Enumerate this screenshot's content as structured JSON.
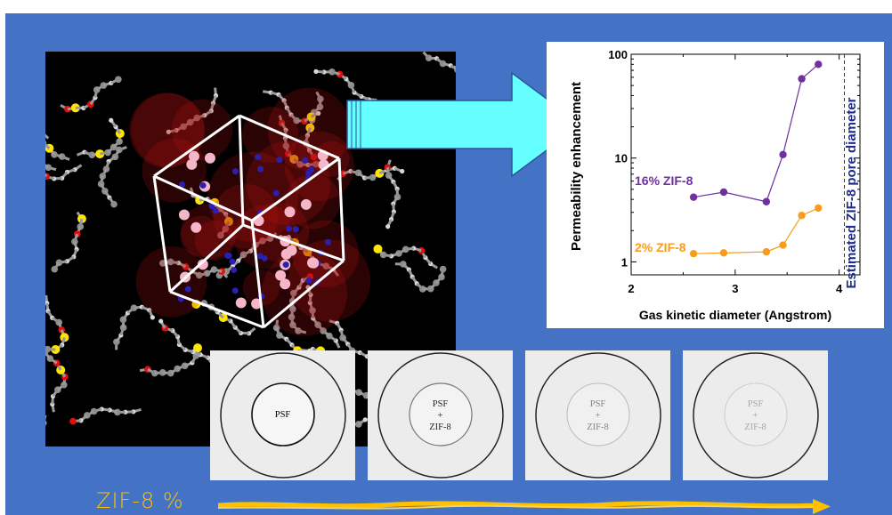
{
  "colors": {
    "background": "#4472c4",
    "arrow_fill": "#66ffff",
    "arrow_stroke": "#2f5597",
    "series_16": "#7030a0",
    "series_2": "#f79c1c",
    "pore_label": "#1f2a8a",
    "zif_label": "#ffc000"
  },
  "molecule_image": {
    "icon": "zif8-polysulfone-structure-render"
  },
  "chart_data": {
    "type": "line",
    "xlabel": "Gas kinetic diameter (Angstrom)",
    "ylabel": "Permeability enhancement",
    "xlim": [
      2,
      4.2
    ],
    "ylim": [
      0.75,
      100
    ],
    "yscale": "log",
    "xticks": [
      "2",
      "3",
      "4"
    ],
    "yticks": [
      "1",
      "10",
      "100"
    ],
    "series": [
      {
        "name": "16% ZIF-8",
        "color": "#7030a0",
        "x": [
          2.6,
          2.89,
          3.3,
          3.46,
          3.64,
          3.8
        ],
        "y": [
          4.2,
          4.7,
          3.8,
          10.8,
          58,
          80
        ]
      },
      {
        "name": "2% ZIF-8",
        "color": "#f79c1c",
        "x": [
          2.6,
          2.89,
          3.3,
          3.46,
          3.64,
          3.8
        ],
        "y": [
          1.2,
          1.22,
          1.25,
          1.45,
          2.8,
          3.3
        ]
      }
    ],
    "reference_line": {
      "x": 4.05,
      "label": "Estimated ZIF-8 pore diameter"
    }
  },
  "membranes": [
    {
      "label": "PSF",
      "opacity": 1.0
    },
    {
      "label": "PSF\n+\nZIF-8",
      "opacity": 0.85
    },
    {
      "label": "PSF\n+\nZIF-8",
      "opacity": 0.45
    },
    {
      "label": "PSF\n+\nZIF-8",
      "opacity": 0.3
    }
  ],
  "footer": {
    "label": "ZIF-8 %"
  }
}
